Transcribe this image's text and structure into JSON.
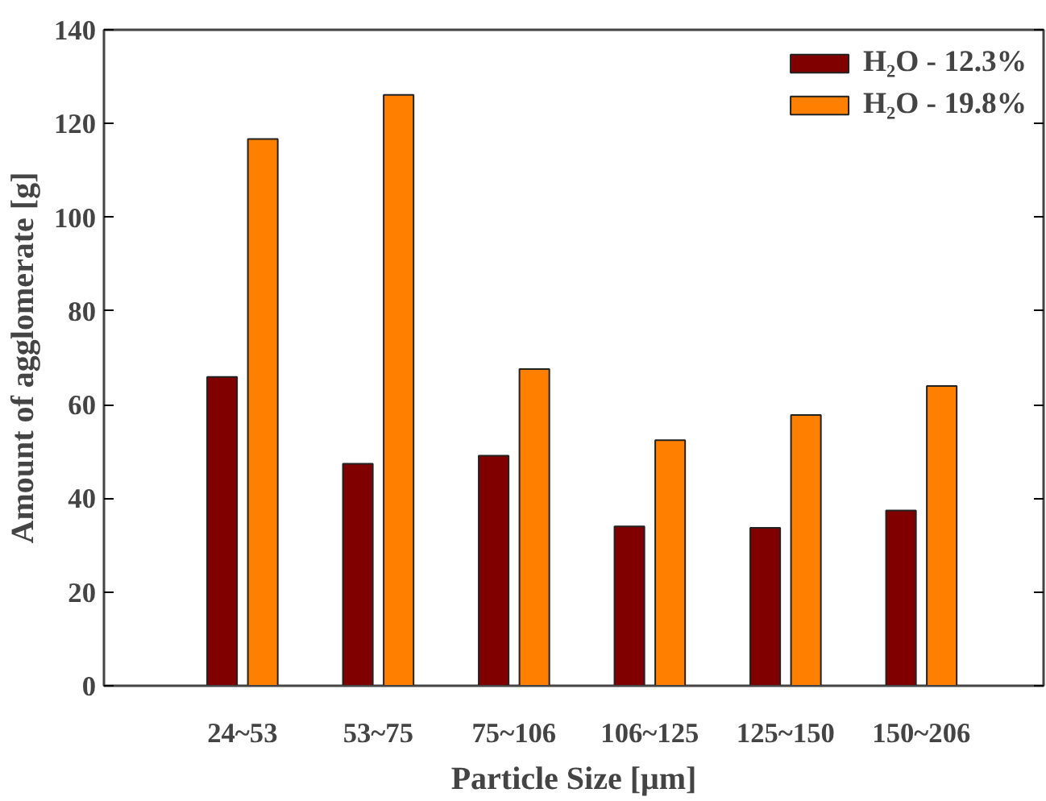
{
  "chart_data": {
    "type": "bar",
    "xlabel": "Particle Size [μm]",
    "ylabel": "Amount of agglomerate [g]",
    "categories": [
      "24~53",
      "53~75",
      "75~106",
      "106~125",
      "125~150",
      "150~206"
    ],
    "series": [
      {
        "name": "H₂O - 12.3%",
        "color": "#800000",
        "values": [
          65.9,
          47.4,
          49.1,
          34.0,
          33.7,
          37.4
        ]
      },
      {
        "name": "H₂O - 19.8%",
        "color": "#ff8000",
        "values": [
          116.7,
          126.1,
          67.6,
          52.4,
          57.8,
          64.0
        ]
      }
    ],
    "ylim": [
      0,
      140
    ],
    "yticks": [
      0,
      20,
      40,
      60,
      80,
      100,
      120,
      140
    ],
    "grid": false,
    "legend": "top right"
  }
}
